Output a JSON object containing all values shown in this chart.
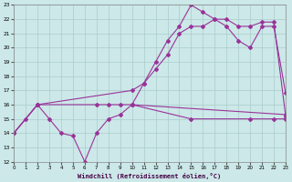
{
  "xlabel": "Windchill (Refroidissement éolien,°C)",
  "bg_color": "#cce8e8",
  "line_color": "#993399",
  "grid_color": "#aacccc",
  "xmin": 0,
  "xmax": 23,
  "ymin": 12,
  "ymax": 23,
  "yticks": [
    12,
    13,
    14,
    15,
    16,
    17,
    18,
    19,
    20,
    21,
    22,
    23
  ],
  "xticks": [
    0,
    1,
    2,
    3,
    4,
    5,
    6,
    7,
    8,
    9,
    10,
    11,
    12,
    13,
    14,
    15,
    16,
    17,
    18,
    19,
    20,
    21,
    22,
    23
  ],
  "line_jagged_x": [
    0,
    1,
    2,
    3,
    4,
    5,
    6,
    7,
    8,
    9,
    10,
    23
  ],
  "line_jagged_y": [
    14,
    15,
    16,
    15,
    14,
    13.8,
    12,
    14,
    15,
    15.3,
    16,
    15.3
  ],
  "line_diagonal_x": [
    0,
    2,
    10,
    11,
    12,
    13,
    14,
    15,
    16,
    17,
    18,
    19,
    20,
    21,
    22,
    23
  ],
  "line_diagonal_y": [
    14,
    16,
    17,
    17.5,
    18.5,
    19.5,
    21,
    21.5,
    21.5,
    22,
    22,
    21.5,
    21.5,
    21.8,
    21.8,
    15.2
  ],
  "line_peak_x": [
    10,
    11,
    12,
    13,
    14,
    15,
    16,
    17,
    18,
    19,
    20,
    21,
    22,
    23
  ],
  "line_peak_y": [
    16,
    17.5,
    19,
    20.5,
    21.5,
    23,
    22.5,
    22,
    21.5,
    20.5,
    20,
    21.5,
    21.5,
    16.8
  ],
  "line_flat_x": [
    0,
    2,
    7,
    8,
    9,
    10,
    15,
    20,
    22,
    23
  ],
  "line_flat_y": [
    14,
    16,
    16,
    16,
    16,
    16,
    15,
    15,
    15,
    15
  ]
}
